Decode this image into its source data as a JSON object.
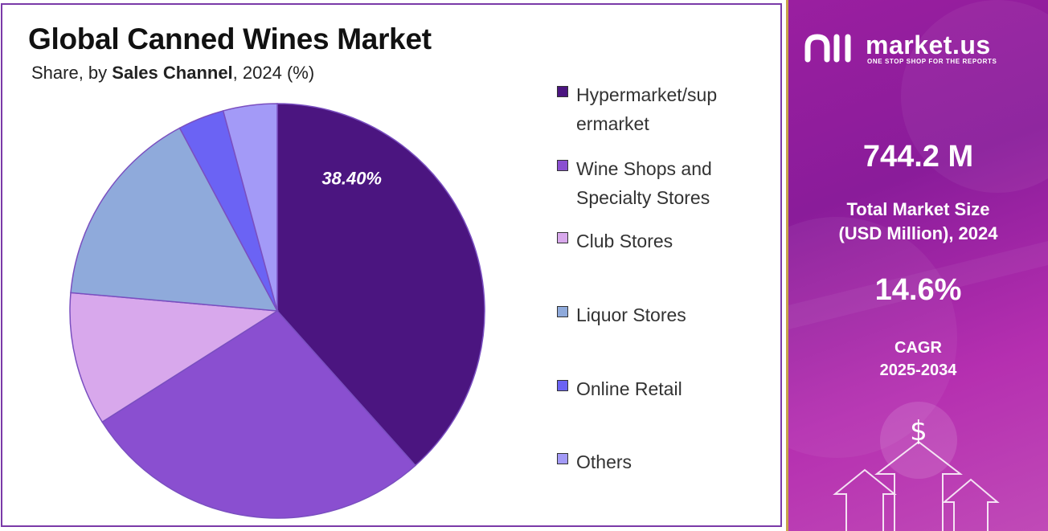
{
  "header": {
    "title": "Global Canned Wines Market",
    "subtitle_prefix": "Share, by ",
    "subtitle_emphasis": "Sales Channel",
    "subtitle_suffix": ", 2024 (%)"
  },
  "chart_data": {
    "type": "pie",
    "start_angle_deg": 0,
    "direction": "clockwise",
    "categories": [
      "Hypermarket/supermarket",
      "Wine Shops and Specialty Stores",
      "Club Stores",
      "Liquor Stores",
      "Online Retail",
      "Others"
    ],
    "legend_lines": [
      [
        "Hypermarket/sup",
        "ermarket"
      ],
      [
        "Wine Shops and",
        "Specialty Stores"
      ],
      [
        "Club Stores"
      ],
      [
        "Liquor Stores"
      ],
      [
        "Online Retail"
      ],
      [
        "Others"
      ]
    ],
    "values": [
      38.4,
      27.6,
      10.4,
      15.8,
      3.6,
      4.2
    ],
    "data_labels": [
      "38.40%",
      "",
      "",
      "",
      "",
      ""
    ],
    "colors": [
      "#4b1580",
      "#8a4fd0",
      "#d8a8ec",
      "#8faadb",
      "#6b63f4",
      "#a39af7"
    ],
    "legend_position": "right"
  },
  "info": {
    "brand": "market.us",
    "tagline": "ONE STOP SHOP FOR THE REPORTS",
    "market_size_value": "744.2 M",
    "market_size_label_line1": "Total Market Size",
    "market_size_label_line2": "(USD Million), 2024",
    "cagr_value": "14.6%",
    "cagr_label_line1": "CAGR",
    "cagr_label_line2": "2025-2034",
    "background_color": "#9a1fa0",
    "accent_border_color": "#c9a24a",
    "decor_icons": [
      "dollar-icon",
      "up-arrow-icon"
    ]
  }
}
